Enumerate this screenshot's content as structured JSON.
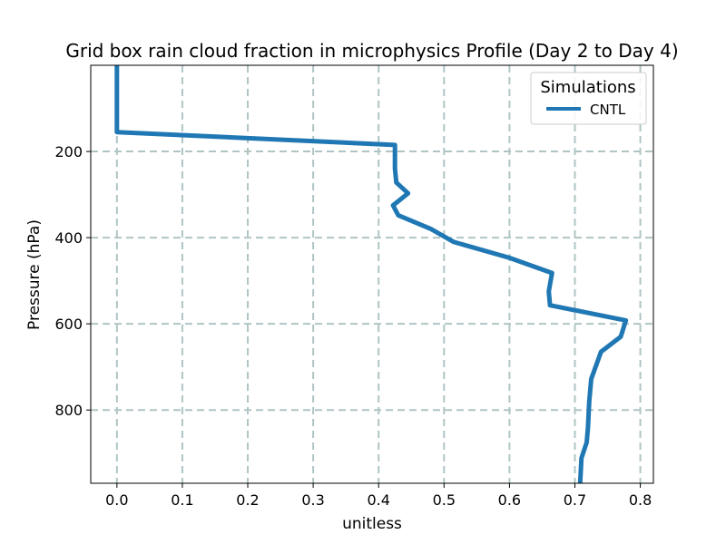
{
  "chart_data": {
    "type": "line",
    "title": "Grid box rain cloud fraction in microphysics Profile (Day 2 to Day 4)",
    "xlabel": "unitless",
    "ylabel": "Pressure (hPa)",
    "xlim": [
      -0.04,
      0.82
    ],
    "ylim": [
      970,
      0
    ],
    "y_inverted": true,
    "xticks": [
      0.0,
      0.1,
      0.2,
      0.3,
      0.4,
      0.5,
      0.6,
      0.7,
      0.8
    ],
    "xtick_labels": [
      "0.0",
      "0.1",
      "0.2",
      "0.3",
      "0.4",
      "0.5",
      "0.6",
      "0.7",
      "0.8"
    ],
    "yticks": [
      200,
      400,
      600,
      800
    ],
    "ytick_labels": [
      "200",
      "400",
      "600",
      "800"
    ],
    "grid": true,
    "legend": {
      "title": "Simulations",
      "position": "top-right"
    },
    "series": [
      {
        "name": "CNTL",
        "color": "#1f77b4",
        "points": [
          [
            0.0,
            0
          ],
          [
            0.0,
            155
          ],
          [
            0.425,
            185
          ],
          [
            0.425,
            240
          ],
          [
            0.427,
            272
          ],
          [
            0.445,
            297
          ],
          [
            0.422,
            325
          ],
          [
            0.43,
            348
          ],
          [
            0.48,
            380
          ],
          [
            0.515,
            410
          ],
          [
            0.6,
            447
          ],
          [
            0.665,
            482
          ],
          [
            0.66,
            525
          ],
          [
            0.662,
            557
          ],
          [
            0.778,
            592
          ],
          [
            0.77,
            630
          ],
          [
            0.74,
            665
          ],
          [
            0.725,
            728
          ],
          [
            0.722,
            780
          ],
          [
            0.72,
            840
          ],
          [
            0.718,
            875
          ],
          [
            0.71,
            912
          ],
          [
            0.708,
            970
          ]
        ]
      }
    ]
  }
}
